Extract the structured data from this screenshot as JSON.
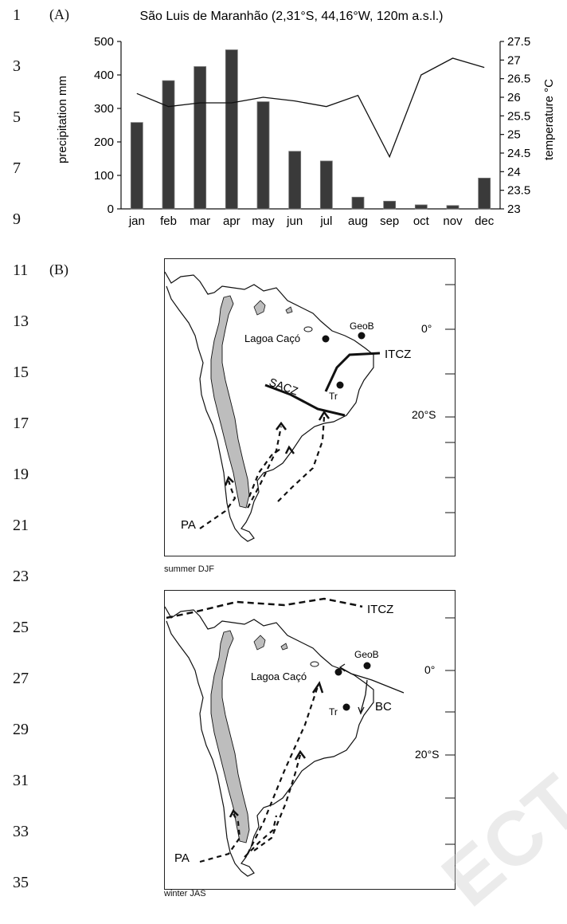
{
  "line_numbers": [
    "1",
    "3",
    "5",
    "7",
    "9",
    "11",
    "13",
    "15",
    "17",
    "19",
    "21",
    "23",
    "25",
    "27",
    "29",
    "31",
    "33",
    "35"
  ],
  "panel_a": {
    "label": "(A)",
    "chart_data": {
      "type": "bar",
      "title": "São Luis de Maranhão (2,31°S, 44,16°W, 120m a.s.l.)",
      "categories": [
        "jan",
        "feb",
        "mar",
        "apr",
        "may",
        "jun",
        "jul",
        "aug",
        "sep",
        "oct",
        "nov",
        "dec"
      ],
      "series": [
        {
          "values": [
            258,
            383,
            425,
            475,
            320,
            172,
            143,
            35,
            23,
            12,
            10,
            92
          ]
        },
        {
          "values": [
            26.1,
            25.75,
            25.85,
            25.85,
            26.0,
            25.9,
            25.75,
            26.05,
            24.4,
            26.6,
            27.05,
            26.8
          ]
        }
      ],
      "ylabel": "precipitation mm",
      "ylim": [
        0,
        500
      ],
      "yticks": [
        "0",
        "100",
        "200",
        "300",
        "400",
        "500"
      ],
      "y2label": "temperature °C",
      "y2lim": [
        23,
        27.5
      ],
      "y2ticks": [
        "23",
        "23.5",
        "24",
        "24.5",
        "25",
        "25.5",
        "26",
        "26.5",
        "27",
        "27.5"
      ],
      "bar_color": "#3a3a3a"
    }
  },
  "panel_b": {
    "label": "(B)",
    "summer": {
      "caption": "summer DJF",
      "labels": {
        "lagoa": "Lagoa Caçó",
        "geob": "GeoB",
        "itcz": "ITCZ",
        "sacz": "SACZ",
        "tr": "Tr",
        "pa": "PA",
        "lat0": "0°",
        "lat20": "20°S"
      }
    },
    "winter": {
      "caption": "winter JAS",
      "labels": {
        "itcz": "ITCZ",
        "geob": "GeoB",
        "lagoa": "Lagoa Caçó",
        "bc": "BC",
        "tr": "Tr",
        "pa": "PA",
        "lat0": "0°",
        "lat20": "20°S"
      }
    }
  },
  "watermark": "ECT"
}
